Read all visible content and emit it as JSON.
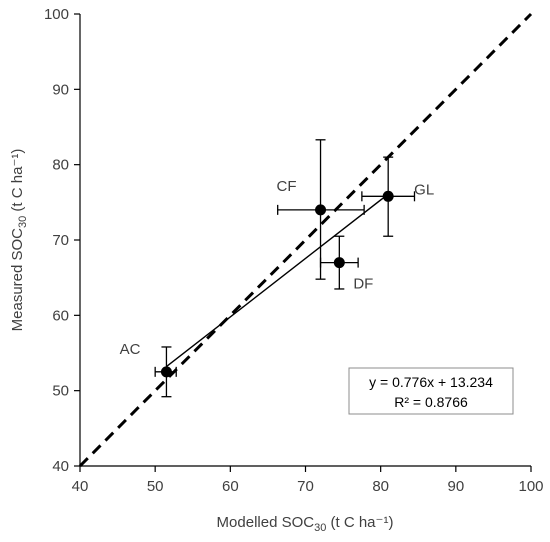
{
  "chart_data": {
    "type": "scatter",
    "xlabel": {
      "main": "Modelled SOC",
      "sub": "30",
      "unit": " (t C ha⁻¹)"
    },
    "ylabel": {
      "main": "Measured SOC",
      "sub": "30",
      "unit": " (t C ha⁻¹)"
    },
    "xlim": [
      40,
      100
    ],
    "ylim": [
      40,
      100
    ],
    "xticks": [
      40,
      50,
      60,
      70,
      80,
      90,
      100
    ],
    "yticks": [
      40,
      50,
      60,
      70,
      80,
      90,
      100
    ],
    "grid": false,
    "points": [
      {
        "label": "AC",
        "x": 51.5,
        "y": 52.5,
        "xerr": [
          50.0,
          52.8
        ],
        "yerr": [
          49.2,
          55.8
        ]
      },
      {
        "label": "CF",
        "x": 72.0,
        "y": 74.0,
        "xerr": [
          66.3,
          77.8
        ],
        "yerr": [
          64.8,
          83.3
        ]
      },
      {
        "label": "DF",
        "x": 74.5,
        "y": 67.0,
        "xerr": [
          72.0,
          77.0
        ],
        "yerr": [
          63.5,
          70.5
        ]
      },
      {
        "label": "GL",
        "x": 81.0,
        "y": 75.8,
        "xerr": [
          77.5,
          84.5
        ],
        "yerr": [
          70.5,
          81.0
        ]
      }
    ],
    "regression": {
      "slope": 0.776,
      "intercept": 13.234,
      "x_range": [
        51.5,
        81.0
      ]
    },
    "reference_line": {
      "style": "dashed",
      "description": "1:1",
      "from": [
        40,
        40
      ],
      "to": [
        100,
        100
      ]
    },
    "annotation": {
      "equation": "y = 0.776x + 13.234",
      "r_squared": "R² = 0.8766"
    }
  }
}
